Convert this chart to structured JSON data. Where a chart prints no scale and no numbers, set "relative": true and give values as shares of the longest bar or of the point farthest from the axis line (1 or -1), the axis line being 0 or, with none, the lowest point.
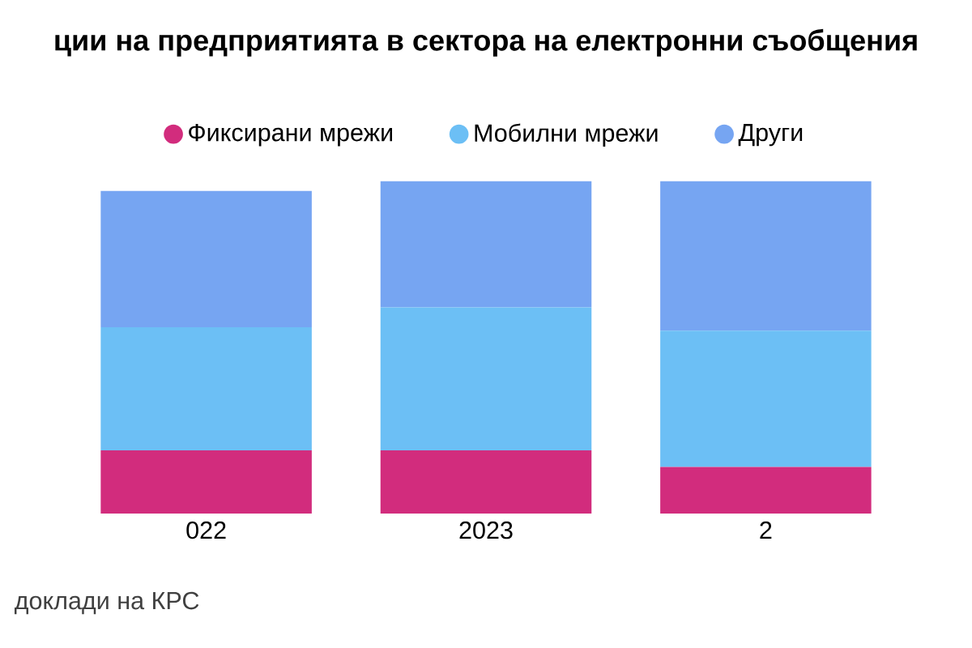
{
  "chart_data": {
    "type": "bar",
    "stacked": true,
    "relative": true,
    "title": "ции на предприятията в сектора на електронни съобщения",
    "categories": [
      "022",
      "2023",
      "2"
    ],
    "series": [
      {
        "name": "Фиксирани мрежи",
        "color": "#d22c7d",
        "values": [
          0.19,
          0.19,
          0.14
        ]
      },
      {
        "name": "Мобилни мрежи",
        "color": "#6cbff5",
        "values": [
          0.37,
          0.43,
          0.41
        ]
      },
      {
        "name": "Други",
        "color": "#76a5f2",
        "values": [
          0.41,
          0.38,
          0.45
        ]
      }
    ],
    "legend": "top",
    "annotations": [
      "доклади на КРС"
    ]
  }
}
